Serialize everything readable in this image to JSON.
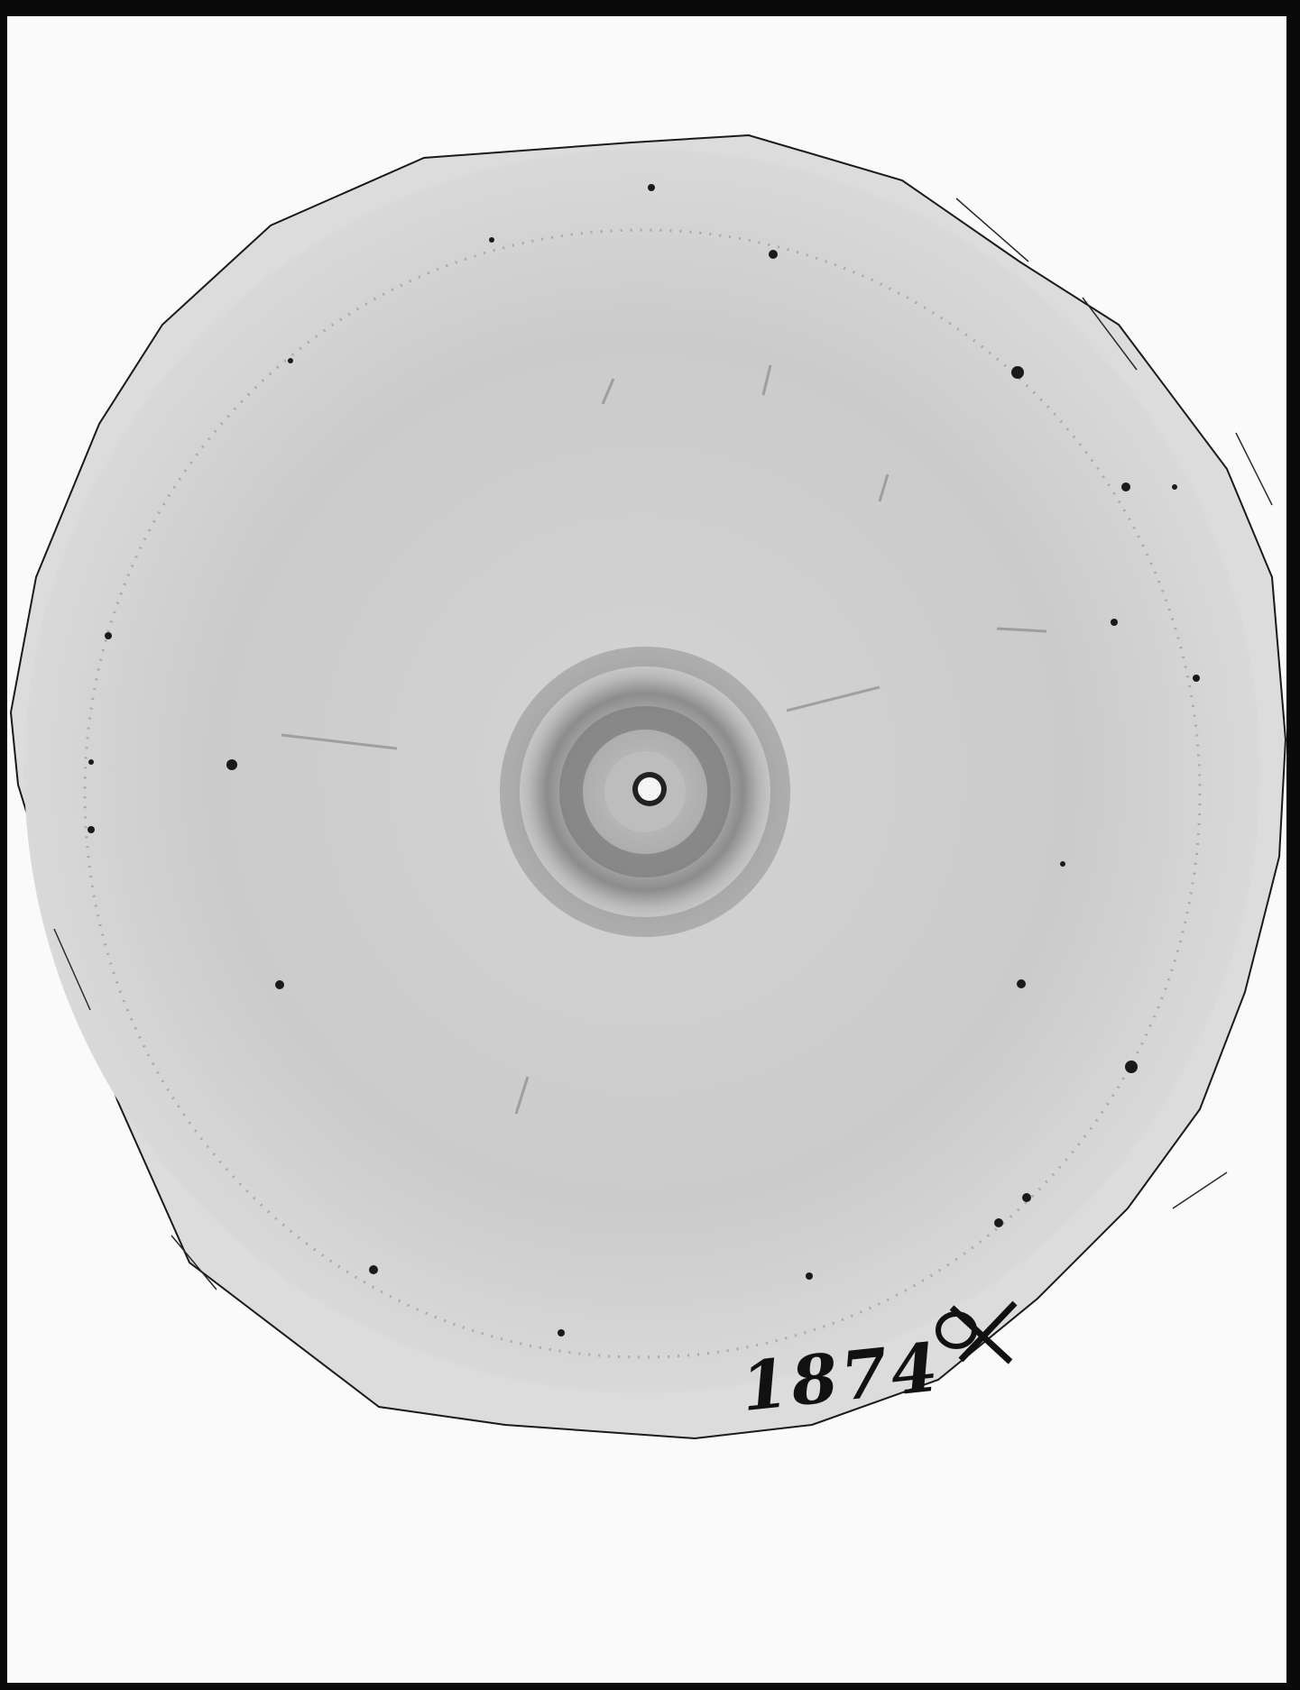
{
  "photograph": {
    "subject": "x-ray-diffraction-pattern-plate",
    "plate_number": "1874",
    "colors": {
      "plate_border": "#0a0a0a",
      "background": "#fafafa",
      "film_outer": "#d9d9d9",
      "film_inner": "#cdcdcd",
      "ring": "#8e8e8e",
      "ink": "#111111"
    }
  }
}
